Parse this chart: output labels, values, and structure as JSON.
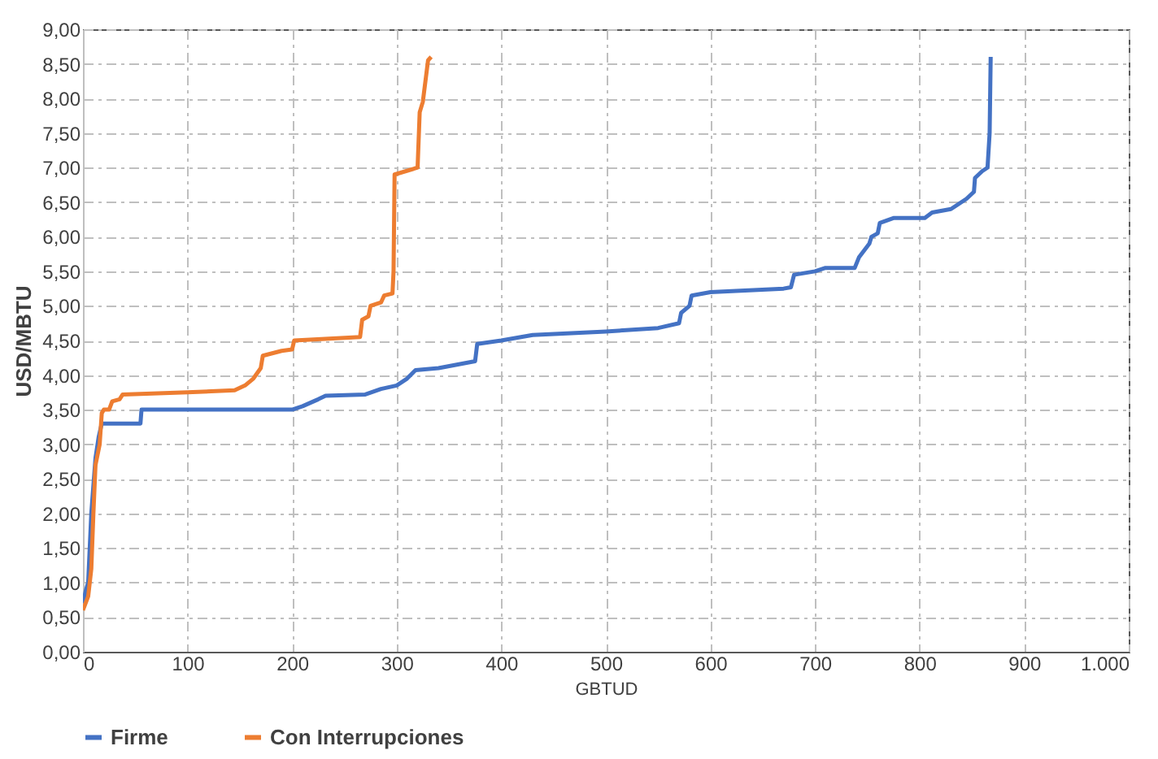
{
  "chart_data": {
    "type": "line",
    "xlabel": "GBTUD",
    "ylabel": "USD/MBTU",
    "xlim": [
      0,
      1000
    ],
    "ylim": [
      0,
      9
    ],
    "xticks": [
      0,
      100,
      200,
      300,
      400,
      500,
      600,
      700,
      800,
      900,
      {
        "value": 1000,
        "label": "1.000"
      }
    ],
    "yticks": [
      {
        "value": 0,
        "label": "0,00"
      },
      {
        "value": 0.5,
        "label": "0,50"
      },
      {
        "value": 1,
        "label": "1,00"
      },
      {
        "value": 1.5,
        "label": "1,50"
      },
      {
        "value": 2,
        "label": "2,00"
      },
      {
        "value": 2.5,
        "label": "2,50"
      },
      {
        "value": 3,
        "label": "3,00"
      },
      {
        "value": 3.5,
        "label": "3,50"
      },
      {
        "value": 4,
        "label": "4,00"
      },
      {
        "value": 4.5,
        "label": "4,50"
      },
      {
        "value": 5,
        "label": "5,00"
      },
      {
        "value": 5.5,
        "label": "5,50"
      },
      {
        "value": 6,
        "label": "6,00"
      },
      {
        "value": 6.5,
        "label": "6,50"
      },
      {
        "value": 7,
        "label": "7,00"
      },
      {
        "value": 7.5,
        "label": "7,50"
      },
      {
        "value": 8,
        "label": "8,00"
      },
      {
        "value": 8.5,
        "label": "8,50"
      },
      {
        "value": 9,
        "label": "9,00"
      }
    ],
    "grid": true,
    "legend": "bottom",
    "series": [
      {
        "name": "Firme",
        "color": "#4472c4",
        "x": [
          0,
          3,
          5,
          8,
          12,
          15,
          18,
          55,
          56,
          200,
          210,
          225,
          232,
          270,
          285,
          300,
          310,
          318,
          340,
          375,
          377,
          400,
          430,
          500,
          550,
          570,
          572,
          580,
          582,
          600,
          670,
          677,
          680,
          700,
          710,
          738,
          742,
          752,
          754,
          760,
          762,
          775,
          805,
          812,
          830,
          845,
          852,
          853,
          860,
          865,
          867,
          868
        ],
        "values": [
          0.7,
          0.9,
          1.0,
          2.0,
          2.8,
          3.1,
          3.3,
          3.3,
          3.5,
          3.5,
          3.55,
          3.65,
          3.7,
          3.72,
          3.8,
          3.85,
          3.95,
          4.07,
          4.1,
          4.2,
          4.45,
          4.5,
          4.58,
          4.63,
          4.68,
          4.75,
          4.9,
          5.0,
          5.15,
          5.2,
          5.25,
          5.27,
          5.45,
          5.5,
          5.55,
          5.55,
          5.7,
          5.9,
          6.0,
          6.05,
          6.2,
          6.27,
          6.27,
          6.35,
          6.4,
          6.55,
          6.65,
          6.85,
          6.95,
          7.0,
          7.5,
          8.6
        ]
      },
      {
        "name": "Con Interrupciones",
        "color": "#ed7d31",
        "x": [
          0,
          5,
          8,
          10,
          12,
          16,
          18,
          20,
          25,
          28,
          35,
          38,
          100,
          145,
          155,
          163,
          170,
          172,
          190,
          200,
          202,
          265,
          267,
          273,
          275,
          285,
          288,
          296,
          297,
          298,
          320,
          322,
          325,
          330,
          333
        ],
        "values": [
          0.6,
          0.8,
          1.2,
          2.0,
          2.7,
          3.0,
          3.45,
          3.5,
          3.5,
          3.62,
          3.65,
          3.72,
          3.75,
          3.78,
          3.85,
          3.95,
          4.1,
          4.28,
          4.35,
          4.37,
          4.5,
          4.55,
          4.8,
          4.85,
          5.0,
          5.05,
          5.15,
          5.18,
          5.5,
          6.9,
          7.0,
          7.8,
          7.95,
          8.55,
          8.6
        ]
      }
    ]
  }
}
